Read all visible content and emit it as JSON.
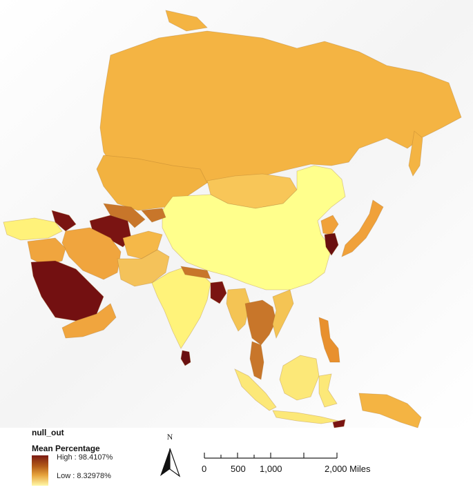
{
  "legend": {
    "layer": "null_out",
    "field": "Mean Percentage",
    "high": "High : 98.4107%",
    "low": "Low : 8.32978%",
    "ramp_colors": [
      "#7a1a12",
      "#b25a18",
      "#e7a33c",
      "#fff8a8"
    ]
  },
  "north_arrow": {
    "label": "N"
  },
  "scale_bar": {
    "labels": [
      "0",
      "500",
      "1,000",
      "2,000 Miles"
    ]
  },
  "regions": {
    "russia": "#f4b443",
    "kazakhstan": "#f2b240",
    "mongolia": "#f8c658",
    "china": "#ffff8c",
    "saudi_arabia": "#731011",
    "turkmenistan": "#7a1412",
    "afghanistan": "#f5b848",
    "pakistan": "#f4c25a",
    "india": "#fff37a",
    "myanmar": "#f4c454",
    "thailand": "#c8762a",
    "bangladesh": "#7a1412",
    "sri_lanka": "#6a1010",
    "south_korea": "#6a0f0f",
    "japan": "#f0a13a",
    "indonesia": "#fce878",
    "philippines": "#e8902e",
    "turkey": "#fff27a",
    "iran": "#f0a53e",
    "papua": "#f4b443"
  }
}
